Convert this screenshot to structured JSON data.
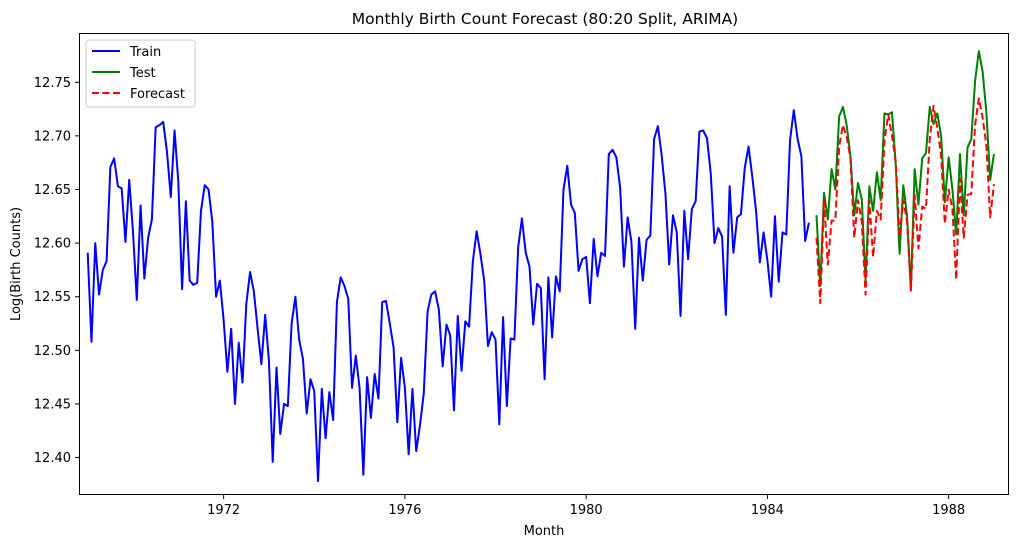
{
  "chart_data": {
    "type": "line",
    "title": "Monthly Birth Count Forecast (80:20 Split, ARIMA)",
    "xlabel": "Month",
    "ylabel": "Log(Birth Counts)",
    "xlim": [
      1968.83,
      1989.31
    ],
    "ylim": [
      12.366,
      12.795
    ],
    "x_ticks": [
      1972,
      1976,
      1980,
      1984,
      1988
    ],
    "y_ticks": [
      12.4,
      12.45,
      12.5,
      12.55,
      12.6,
      12.65,
      12.7,
      12.75
    ],
    "legend_position": "top-left",
    "grid": false,
    "series": [
      {
        "name": "Train",
        "color": "#0000ff",
        "style": "solid",
        "x_start": 1969.0,
        "x_step": 0.08333333,
        "values": [
          12.591,
          12.508,
          12.6,
          12.552,
          12.575,
          12.583,
          12.671,
          12.679,
          12.653,
          12.651,
          12.601,
          12.659,
          12.61,
          12.547,
          12.635,
          12.567,
          12.605,
          12.622,
          12.708,
          12.71,
          12.713,
          12.685,
          12.643,
          12.705,
          12.657,
          12.557,
          12.639,
          12.565,
          12.561,
          12.563,
          12.63,
          12.654,
          12.65,
          12.62,
          12.55,
          12.565,
          12.528,
          12.48,
          12.52,
          12.45,
          12.507,
          12.47,
          12.543,
          12.573,
          12.555,
          12.52,
          12.487,
          12.533,
          12.49,
          12.396,
          12.484,
          12.422,
          12.45,
          12.448,
          12.525,
          12.55,
          12.51,
          12.492,
          12.441,
          12.473,
          12.462,
          12.378,
          12.464,
          12.418,
          12.461,
          12.435,
          12.545,
          12.568,
          12.56,
          12.548,
          12.465,
          12.495,
          12.465,
          12.384,
          12.475,
          12.437,
          12.478,
          12.455,
          12.545,
          12.546,
          12.525,
          12.503,
          12.433,
          12.493,
          12.465,
          12.403,
          12.464,
          12.406,
          12.43,
          12.46,
          12.536,
          12.552,
          12.555,
          12.538,
          12.485,
          12.524,
          12.514,
          12.444,
          12.532,
          12.481,
          12.527,
          12.522,
          12.583,
          12.611,
          12.59,
          12.565,
          12.504,
          12.517,
          12.51,
          12.431,
          12.531,
          12.448,
          12.511,
          12.51,
          12.596,
          12.623,
          12.591,
          12.578,
          12.524,
          12.562,
          12.558,
          12.473,
          12.568,
          12.512,
          12.569,
          12.555,
          12.65,
          12.672,
          12.636,
          12.628,
          12.574,
          12.585,
          12.587,
          12.544,
          12.604,
          12.569,
          12.591,
          12.588,
          12.683,
          12.687,
          12.68,
          12.652,
          12.578,
          12.624,
          12.601,
          12.52,
          12.605,
          12.565,
          12.603,
          12.607,
          12.697,
          12.709,
          12.682,
          12.646,
          12.58,
          12.626,
          12.61,
          12.532,
          12.63,
          12.585,
          12.632,
          12.639,
          12.704,
          12.705,
          12.698,
          12.665,
          12.6,
          12.614,
          12.606,
          12.533,
          12.653,
          12.591,
          12.624,
          12.627,
          12.67,
          12.69,
          12.662,
          12.63,
          12.582,
          12.61,
          12.584,
          12.55,
          12.625,
          12.564,
          12.61,
          12.608,
          12.696,
          12.724,
          12.697,
          12.681,
          12.602,
          12.619
        ]
      },
      {
        "name": "Test",
        "color": "#008000",
        "style": "solid",
        "x_start": 1985.0833,
        "x_step": 0.08333333,
        "values": [
          12.626,
          12.56,
          12.647,
          12.622,
          12.669,
          12.65,
          12.718,
          12.727,
          12.71,
          12.681,
          12.626,
          12.656,
          12.641,
          12.565,
          12.653,
          12.63,
          12.666,
          12.64,
          12.721,
          12.72,
          12.722,
          12.673,
          12.59,
          12.654,
          12.625,
          12.556,
          12.669,
          12.636,
          12.679,
          12.684,
          12.727,
          12.711,
          12.721,
          12.7,
          12.638,
          12.68,
          12.65,
          12.608,
          12.683,
          12.626,
          12.689,
          12.697,
          12.751,
          12.779,
          12.76,
          12.722,
          12.659,
          12.683
        ]
      },
      {
        "name": "Forecast",
        "color": "#ff0000",
        "style": "dashed",
        "x_start": 1985.0833,
        "x_step": 0.08333333,
        "values": [
          12.605,
          12.544,
          12.64,
          12.58,
          12.621,
          12.621,
          12.69,
          12.71,
          12.699,
          12.679,
          12.605,
          12.64,
          12.62,
          12.552,
          12.64,
          12.587,
          12.63,
          12.622,
          12.695,
          12.72,
          12.7,
          12.676,
          12.606,
          12.64,
          12.62,
          12.555,
          12.645,
          12.595,
          12.634,
          12.632,
          12.697,
          12.728,
          12.707,
          12.682,
          12.618,
          12.65,
          12.632,
          12.566,
          12.66,
          12.605,
          12.645,
          12.646,
          12.71,
          12.735,
          12.717,
          12.691,
          12.624,
          12.655
        ]
      }
    ]
  }
}
